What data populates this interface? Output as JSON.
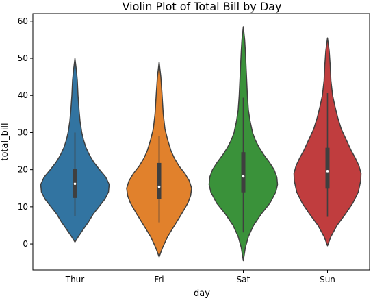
{
  "chart_data": {
    "type": "violin",
    "title": "Violin Plot of Total Bill by Day",
    "xlabel": "day",
    "ylabel": "total_bill",
    "ylim": [
      -7,
      62
    ],
    "yticks": [
      0,
      10,
      20,
      30,
      40,
      50,
      60
    ],
    "categories": [
      "Thur",
      "Fri",
      "Sat",
      "Sun"
    ],
    "colors": [
      "#3274a1",
      "#e1812c",
      "#3a923a",
      "#c03d3e"
    ],
    "grid": false,
    "legend": "none",
    "violins": [
      {
        "category": "Thur",
        "min": 7.5,
        "q1": 12.4,
        "median": 16.2,
        "q3": 20.2,
        "max": 30.0,
        "kde_min": 0.5,
        "kde_max": 50,
        "profile": [
          [
            0.5,
            0.0
          ],
          [
            2,
            0.1
          ],
          [
            4,
            0.25
          ],
          [
            6,
            0.4
          ],
          [
            8,
            0.53
          ],
          [
            10,
            0.7
          ],
          [
            12,
            0.87
          ],
          [
            14,
            0.98
          ],
          [
            16,
            1.0
          ],
          [
            18,
            0.9
          ],
          [
            20,
            0.72
          ],
          [
            22,
            0.55
          ],
          [
            24,
            0.42
          ],
          [
            26,
            0.32
          ],
          [
            28,
            0.25
          ],
          [
            30,
            0.2
          ],
          [
            33,
            0.15
          ],
          [
            36,
            0.12
          ],
          [
            40,
            0.09
          ],
          [
            44,
            0.07
          ],
          [
            47,
            0.04
          ],
          [
            50,
            0.0
          ]
        ]
      },
      {
        "category": "Fri",
        "min": 5.8,
        "q1": 12.1,
        "median": 15.4,
        "q3": 21.8,
        "max": 29.1,
        "kde_min": -3.5,
        "kde_max": 49,
        "profile": [
          [
            -3.5,
            0.0
          ],
          [
            -1,
            0.1
          ],
          [
            2,
            0.25
          ],
          [
            5,
            0.45
          ],
          [
            8,
            0.65
          ],
          [
            11,
            0.84
          ],
          [
            13,
            0.92
          ],
          [
            15,
            0.95
          ],
          [
            17,
            0.88
          ],
          [
            19,
            0.75
          ],
          [
            21,
            0.58
          ],
          [
            23,
            0.45
          ],
          [
            25,
            0.35
          ],
          [
            28,
            0.25
          ],
          [
            31,
            0.17
          ],
          [
            35,
            0.12
          ],
          [
            38,
            0.1
          ],
          [
            41,
            0.08
          ],
          [
            45,
            0.05
          ],
          [
            49,
            0.0
          ]
        ]
      },
      {
        "category": "Sat",
        "min": 3.1,
        "q1": 13.9,
        "median": 18.2,
        "q3": 24.7,
        "max": 39.4,
        "kde_min": -4.5,
        "kde_max": 58.5,
        "profile": [
          [
            -4.5,
            0.0
          ],
          [
            -1,
            0.06
          ],
          [
            2,
            0.15
          ],
          [
            5,
            0.3
          ],
          [
            8,
            0.52
          ],
          [
            11,
            0.78
          ],
          [
            14,
            0.95
          ],
          [
            16,
            1.0
          ],
          [
            18,
            0.98
          ],
          [
            20,
            0.9
          ],
          [
            22,
            0.76
          ],
          [
            24,
            0.6
          ],
          [
            26,
            0.46
          ],
          [
            28,
            0.35
          ],
          [
            30,
            0.27
          ],
          [
            33,
            0.2
          ],
          [
            36,
            0.15
          ],
          [
            40,
            0.12
          ],
          [
            44,
            0.1
          ],
          [
            48,
            0.08
          ],
          [
            52,
            0.06
          ],
          [
            55,
            0.04
          ],
          [
            58.5,
            0.0
          ]
        ]
      },
      {
        "category": "Sun",
        "min": 7.3,
        "q1": 14.9,
        "median": 19.6,
        "q3": 25.9,
        "max": 40.6,
        "kde_min": -0.5,
        "kde_max": 55.5,
        "profile": [
          [
            -0.5,
            0.0
          ],
          [
            2,
            0.1
          ],
          [
            5,
            0.28
          ],
          [
            8,
            0.52
          ],
          [
            11,
            0.74
          ],
          [
            14,
            0.9
          ],
          [
            17,
            0.97
          ],
          [
            19,
            0.98
          ],
          [
            21,
            0.92
          ],
          [
            23,
            0.82
          ],
          [
            25,
            0.7
          ],
          [
            27,
            0.6
          ],
          [
            29,
            0.5
          ],
          [
            31,
            0.4
          ],
          [
            34,
            0.3
          ],
          [
            37,
            0.22
          ],
          [
            40,
            0.15
          ],
          [
            44,
            0.1
          ],
          [
            48,
            0.08
          ],
          [
            52,
            0.05
          ],
          [
            55.5,
            0.0
          ]
        ]
      }
    ]
  }
}
